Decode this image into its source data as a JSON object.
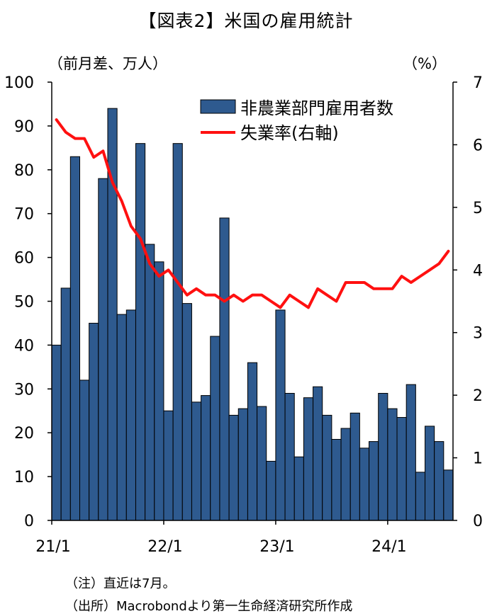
{
  "chart_data": {
    "type": "bar",
    "title": "【図表2】米国の雇用統計",
    "left_axis_unit": "（前月差、万人）",
    "right_axis_unit": "（%）",
    "ylim": [
      0,
      100
    ],
    "y2lim": [
      0,
      7
    ],
    "y_ticks": [
      "0",
      "10",
      "20",
      "30",
      "40",
      "50",
      "60",
      "70",
      "80",
      "90",
      "100"
    ],
    "y2_ticks": [
      "0",
      "1",
      "2",
      "3",
      "4",
      "5",
      "6",
      "7"
    ],
    "x_tick_labels": [
      {
        "label": "21/1",
        "index": 0
      },
      {
        "label": "22/1",
        "index": 12
      },
      {
        "label": "23/1",
        "index": 24
      },
      {
        "label": "24/1",
        "index": 36
      }
    ],
    "grid": false,
    "legend_position": "top-right",
    "months": [
      "21/1",
      "21/2",
      "21/3",
      "21/4",
      "21/5",
      "21/6",
      "21/7",
      "21/8",
      "21/9",
      "21/10",
      "21/11",
      "21/12",
      "22/1",
      "22/2",
      "22/3",
      "22/4",
      "22/5",
      "22/6",
      "22/7",
      "22/8",
      "22/9",
      "22/10",
      "22/11",
      "22/12",
      "23/1",
      "23/2",
      "23/3",
      "23/4",
      "23/5",
      "23/6",
      "23/7",
      "23/8",
      "23/9",
      "23/10",
      "23/11",
      "23/12",
      "24/1",
      "24/2",
      "24/3",
      "24/4",
      "24/5",
      "24/6",
      "24/7"
    ],
    "series": [
      {
        "name": "非農業部門雇用者数",
        "type": "bar",
        "axis": "left",
        "color": "#2e5a8f",
        "values": [
          40,
          53,
          83,
          32,
          45,
          78,
          94,
          47,
          48,
          86,
          63,
          59,
          25,
          86,
          49.5,
          27,
          28.5,
          42,
          69,
          24,
          25.5,
          36,
          26,
          13.5,
          48,
          29,
          14.5,
          28,
          30.5,
          24,
          18.5,
          21,
          24.5,
          16.5,
          18,
          29,
          25.5,
          23.5,
          31,
          11,
          21.5,
          18,
          11.5
        ]
      },
      {
        "name": "失業率(右軸)",
        "type": "line",
        "axis": "right",
        "color": "#ff1010",
        "values": [
          6.4,
          6.2,
          6.1,
          6.1,
          5.8,
          5.9,
          5.4,
          5.1,
          4.7,
          4.5,
          4.1,
          3.9,
          4.0,
          3.8,
          3.6,
          3.7,
          3.6,
          3.6,
          3.5,
          3.6,
          3.5,
          3.6,
          3.6,
          3.5,
          3.4,
          3.6,
          3.5,
          3.4,
          3.7,
          3.6,
          3.5,
          3.8,
          3.8,
          3.8,
          3.7,
          3.7,
          3.7,
          3.9,
          3.8,
          3.9,
          4.0,
          4.1,
          4.3
        ]
      }
    ]
  },
  "notes": {
    "line1": "（注）直近は7月。",
    "line2": "（出所）Macrobondより第一生命経済研究所作成"
  }
}
